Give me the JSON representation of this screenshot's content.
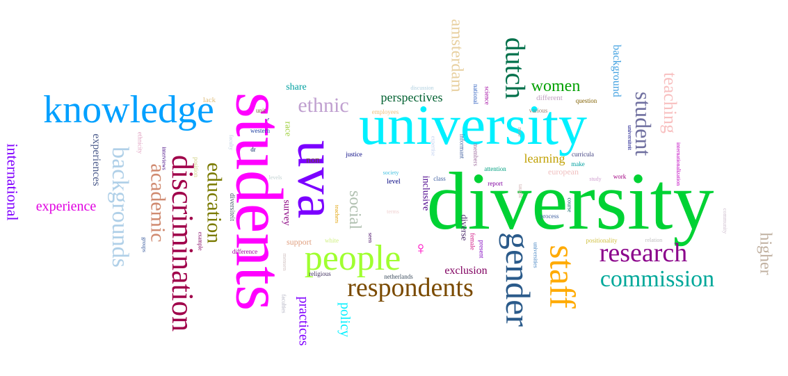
{
  "words": [
    {
      "text": "diversity",
      "color": "#00d234"
    },
    {
      "text": "university",
      "color": "#00f0ff"
    },
    {
      "text": "students",
      "color": "#ff00ff"
    },
    {
      "text": "uva",
      "color": "#7b00ff"
    },
    {
      "text": "knowledge",
      "color": "#00a0ff"
    },
    {
      "text": "discrimination",
      "color": "#a0004a"
    },
    {
      "text": "people",
      "color": "#a0ff30"
    },
    {
      "text": "respondents",
      "color": "#7a4a00"
    },
    {
      "text": "gender",
      "color": "#2a5a8a"
    },
    {
      "text": "staff",
      "color": "#ffaa00"
    },
    {
      "text": "research",
      "color": "#8a008a"
    },
    {
      "text": "commission",
      "color": "#00a89a"
    },
    {
      "text": "backgrounds",
      "color": "#b0d0e8"
    },
    {
      "text": "academic",
      "color": "#d08a70"
    },
    {
      "text": "education",
      "color": "#7a7a00"
    },
    {
      "text": "dutch",
      "color": "#00704a"
    },
    {
      "text": "student",
      "color": "#7070a0"
    },
    {
      "text": "ethnic",
      "color": "#c0a0d0"
    },
    {
      "text": "social",
      "color": "#b0c0b0"
    },
    {
      "text": "amsterdam",
      "color": "#e8d0a0"
    },
    {
      "text": "teaching",
      "color": "#f8c0c0"
    },
    {
      "text": "higher",
      "color": "#c0b0a0"
    },
    {
      "text": "women",
      "color": "#00a000"
    },
    {
      "text": "international",
      "color": "#8000ff"
    },
    {
      "text": "experience",
      "color": "#e000e0"
    },
    {
      "text": "experiences",
      "color": "#4a5a8a"
    },
    {
      "text": "practices",
      "color": "#8000ff"
    },
    {
      "text": "policy",
      "color": "#00f0ff"
    },
    {
      "text": "perspectives",
      "color": "#006030"
    },
    {
      "text": "learning",
      "color": "#c0a000"
    },
    {
      "text": "background",
      "color": "#40a0e0"
    },
    {
      "text": "exclusion",
      "color": "#800060"
    },
    {
      "text": "survey",
      "color": "#8a0080"
    },
    {
      "text": "inclusive",
      "color": "#4a008a"
    },
    {
      "text": "diverse",
      "color": "#4a2a6a"
    },
    {
      "text": "share",
      "color": "#00a0a0"
    },
    {
      "text": "race",
      "color": "#a0d040"
    },
    {
      "text": "non",
      "color": "#6a4a2a"
    },
    {
      "text": "support",
      "color": "#e0a080"
    },
    {
      "text": "european",
      "color": "#f0c0c0"
    },
    {
      "text": "different",
      "color": "#c0a0c0"
    },
    {
      "text": "diversiteit",
      "color": "#4a5a6a"
    },
    {
      "text": "employees",
      "color": "#f0c080"
    },
    {
      "text": "discussion",
      "color": "#b0d0e0"
    },
    {
      "text": "national",
      "color": "#3060c0"
    },
    {
      "text": "science",
      "color": "#a000a0"
    },
    {
      "text": "question",
      "color": "#806000"
    },
    {
      "text": "various",
      "color": "#a08070"
    },
    {
      "text": "note",
      "color": "#c0a0a0"
    },
    {
      "text": "universiteit",
      "color": "#000080"
    },
    {
      "text": "internationalization",
      "color": "#c000c0"
    },
    {
      "text": "informant",
      "color": "#4060a0"
    },
    {
      "text": "members",
      "color": "#a070a0"
    },
    {
      "text": "curricula",
      "color": "#404080"
    },
    {
      "text": "make",
      "color": "#00a0a0"
    },
    {
      "text": "attention",
      "color": "#00a080"
    },
    {
      "text": "expertise",
      "color": "#c0d0f0"
    },
    {
      "text": "justice",
      "color": "#000080"
    },
    {
      "text": "society",
      "color": "#40c0e0"
    },
    {
      "text": "class",
      "color": "#4060a0"
    },
    {
      "text": "level",
      "color": "#000080"
    },
    {
      "text": "report",
      "color": "#8000a0"
    },
    {
      "text": "taught",
      "color": "#d0b0b0"
    },
    {
      "text": "study",
      "color": "#d0a0d0"
    },
    {
      "text": "work",
      "color": "#a00080"
    },
    {
      "text": "community",
      "color": "#d0c0d0"
    },
    {
      "text": "process",
      "color": "#4060a0"
    },
    {
      "text": "course",
      "color": "#006060"
    },
    {
      "text": "positionality",
      "color": "#d0c040"
    },
    {
      "text": "relation",
      "color": "#c0c0c0"
    },
    {
      "text": "female",
      "color": "#d01080"
    },
    {
      "text": "present",
      "color": "#8000c0"
    },
    {
      "text": "universities",
      "color": "#4080c0"
    },
    {
      "text": "netherlands",
      "color": "#405060"
    },
    {
      "text": "religious",
      "color": "#403060"
    },
    {
      "text": "white",
      "color": "#d0f080"
    },
    {
      "text": "seen",
      "color": "#400060"
    },
    {
      "text": "teachers",
      "color": "#e0a000"
    },
    {
      "text": "terms",
      "color": "#f0d0d0"
    },
    {
      "text": "mensen",
      "color": "#d0c0c0"
    },
    {
      "text": "faculties",
      "color": "#b0b0c0"
    },
    {
      "text": "difference",
      "color": "#a000a0"
    },
    {
      "text": "example",
      "color": "#800060"
    },
    {
      "text": "groups",
      "color": "#4060a0"
    },
    {
      "text": "position",
      "color": "#d0d080"
    },
    {
      "text": "levels",
      "color": "#c0d0d0"
    },
    {
      "text": "faculty",
      "color": "#c0d0e0"
    },
    {
      "text": "unit",
      "color": "#806040"
    },
    {
      "text": "western",
      "color": "#2040a0"
    },
    {
      "text": "dr",
      "color": "#002060"
    },
    {
      "text": "lack",
      "color": "#e0c080"
    },
    {
      "text": "ethnicity",
      "color": "#e0a0c0"
    },
    {
      "text": "interviews",
      "color": "#400080"
    },
    {
      "text": "♂",
      "color": "#000080"
    },
    {
      "text": "♀",
      "color": "#ff00c0"
    }
  ]
}
